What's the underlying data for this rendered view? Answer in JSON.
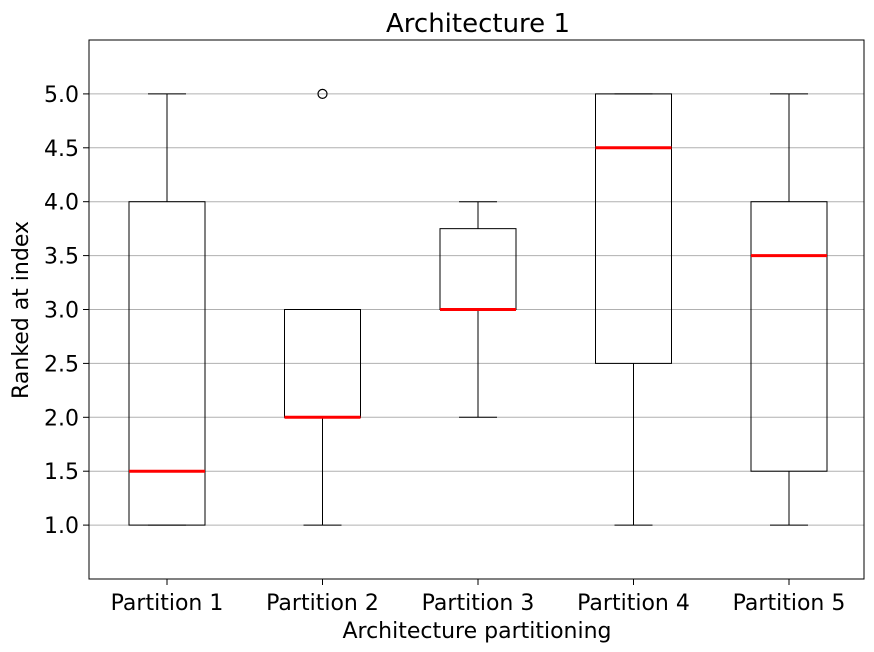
{
  "chart_data": {
    "type": "boxplot",
    "title": "Architecture 1",
    "xlabel": "Architecture partitioning",
    "ylabel": "Ranked at index",
    "ylim": [
      0.5,
      5.5
    ],
    "yticks": [
      1.0,
      1.5,
      2.0,
      2.5,
      3.0,
      3.5,
      4.0,
      4.5,
      5.0
    ],
    "ytick_labels": [
      "1.0",
      "1.5",
      "2.0",
      "2.5",
      "3.0",
      "3.5",
      "4.0",
      "4.5",
      "5.0"
    ],
    "grid": "horizontal",
    "categories": [
      "Partition 1",
      "Partition 2",
      "Partition 3",
      "Partition 4",
      "Partition 5"
    ],
    "boxes": [
      {
        "whisker_low": 1.0,
        "q1": 1.0,
        "median": 1.5,
        "q3": 4.0,
        "whisker_high": 5.0,
        "outliers": []
      },
      {
        "whisker_low": 1.0,
        "q1": 2.0,
        "median": 2.0,
        "q3": 3.0,
        "whisker_high": 3.0,
        "outliers": [
          5.0
        ]
      },
      {
        "whisker_low": 2.0,
        "q1": 3.0,
        "median": 3.0,
        "q3": 3.75,
        "whisker_high": 4.0,
        "outliers": []
      },
      {
        "whisker_low": 1.0,
        "q1": 2.5,
        "median": 4.5,
        "q3": 5.0,
        "whisker_high": 5.0,
        "outliers": []
      },
      {
        "whisker_low": 1.0,
        "q1": 1.5,
        "median": 3.5,
        "q3": 4.0,
        "whisker_high": 5.0,
        "outliers": []
      }
    ],
    "colors": {
      "box": "#000000",
      "median": "#ff0000",
      "grid": "#b0b0b0"
    }
  }
}
